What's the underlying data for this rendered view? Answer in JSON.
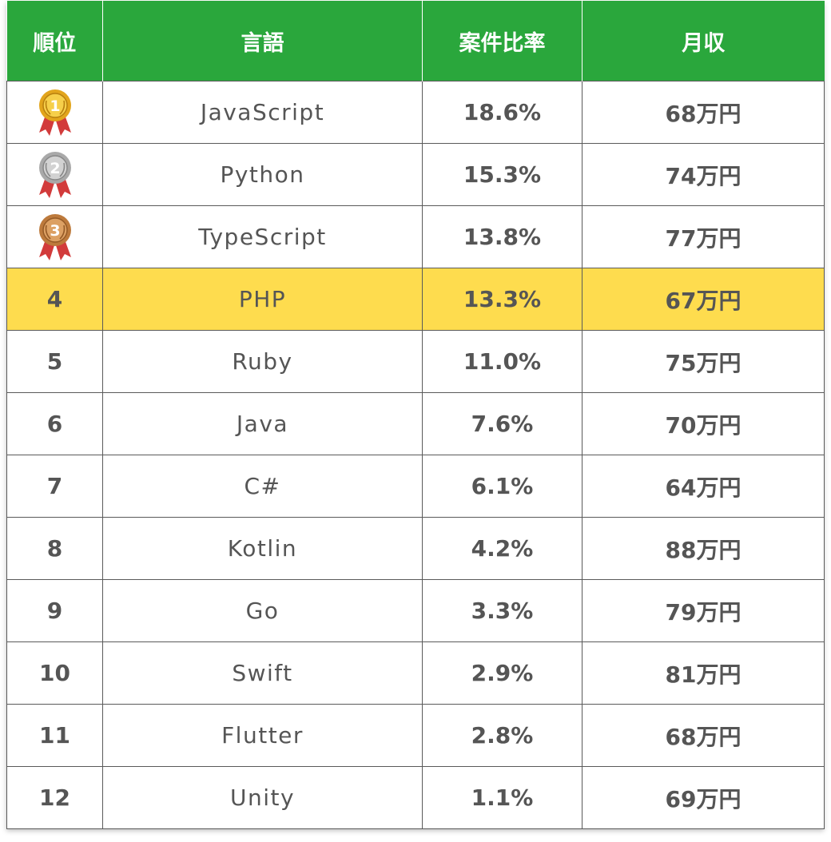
{
  "headers": [
    "順位",
    "言語",
    "案件比率",
    "月収"
  ],
  "colors": {
    "header_bg": "#2aa73c",
    "highlight_bg": "#fedc4e",
    "text": "#555555"
  },
  "rows": [
    {
      "rank": "1",
      "medal": "gold-medal-icon",
      "language": "JavaScript",
      "ratio": "18.6%",
      "income": "68万円"
    },
    {
      "rank": "2",
      "medal": "silver-medal-icon",
      "language": "Python",
      "ratio": "15.3%",
      "income": "74万円"
    },
    {
      "rank": "3",
      "medal": "bronze-medal-icon",
      "language": "TypeScript",
      "ratio": "13.8%",
      "income": "77万円"
    },
    {
      "rank": "4",
      "language": "PHP",
      "ratio": "13.3%",
      "income": "67万円",
      "highlight": true
    },
    {
      "rank": "5",
      "language": "Ruby",
      "ratio": "11.0%",
      "income": "75万円"
    },
    {
      "rank": "6",
      "language": "Java",
      "ratio": "7.6%",
      "income": "70万円"
    },
    {
      "rank": "7",
      "language": "C#",
      "ratio": "6.1%",
      "income": "64万円"
    },
    {
      "rank": "8",
      "language": "Kotlin",
      "ratio": "4.2%",
      "income": "88万円"
    },
    {
      "rank": "9",
      "language": "Go",
      "ratio": "3.3%",
      "income": "79万円"
    },
    {
      "rank": "10",
      "language": "Swift",
      "ratio": "2.9%",
      "income": "81万円"
    },
    {
      "rank": "11",
      "language": "Flutter",
      "ratio": "2.8%",
      "income": "68万円"
    },
    {
      "rank": "12",
      "language": "Unity",
      "ratio": "1.1%",
      "income": "69万円"
    }
  ]
}
